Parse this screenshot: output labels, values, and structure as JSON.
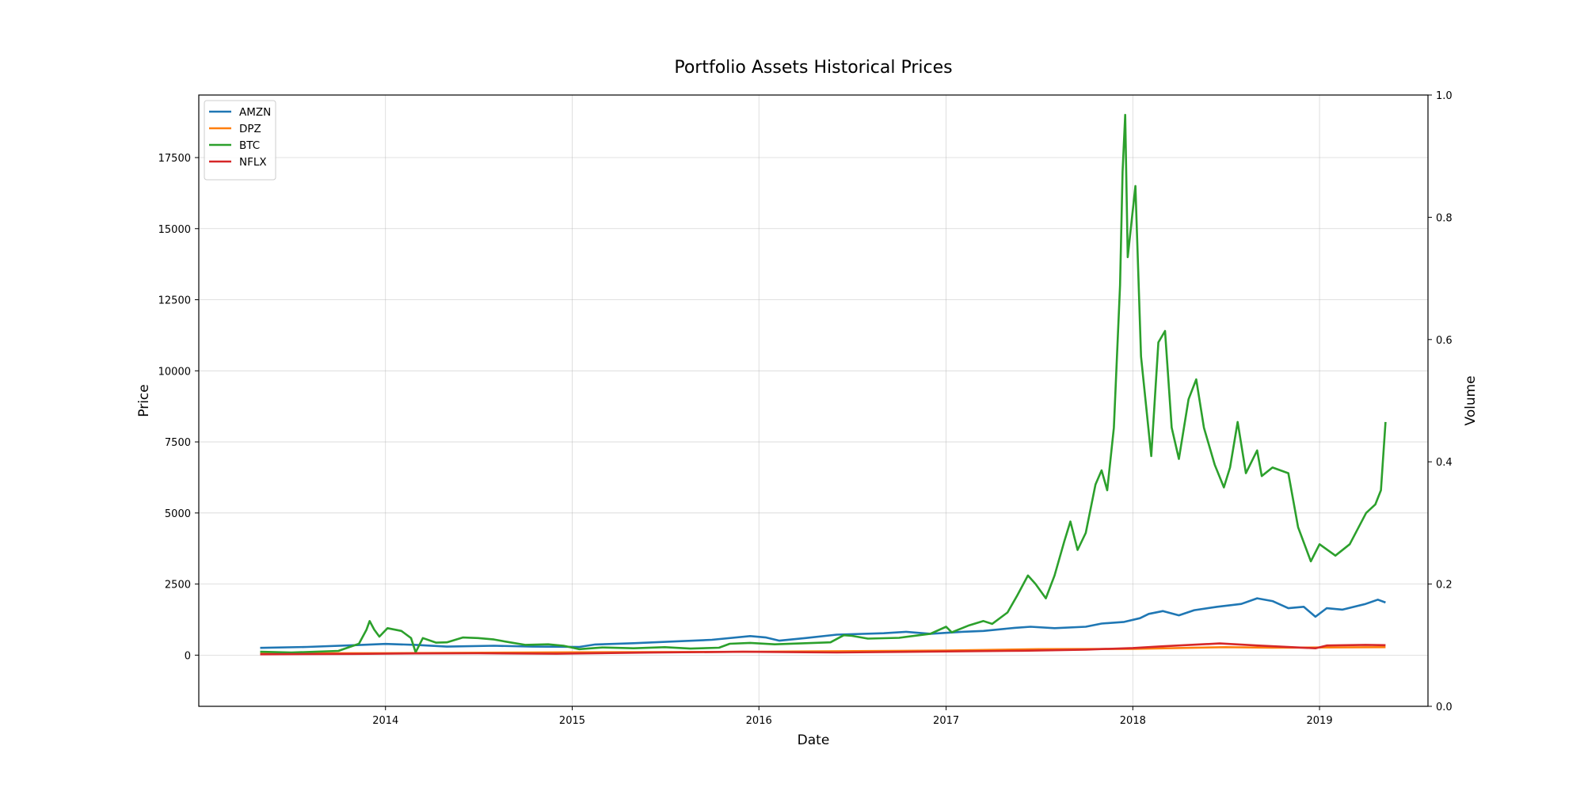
{
  "chart_data": {
    "type": "line",
    "title": "Portfolio Assets Historical Prices",
    "xlabel": "Date",
    "ylabel": "Price",
    "y2label": "Volume",
    "xlim": [
      "2013-01-01",
      "2019-08-01"
    ],
    "ylim": [
      -1800,
      19700
    ],
    "y2lim": [
      0,
      1.0
    ],
    "x_ticks": [
      "2014",
      "2015",
      "2016",
      "2017",
      "2018",
      "2019"
    ],
    "y_ticks": [
      0,
      2500,
      5000,
      7500,
      10000,
      12500,
      15000,
      17500
    ],
    "y2_ticks": [
      "0.0",
      "0.2",
      "0.4",
      "0.6",
      "0.8",
      "1.0"
    ],
    "grid": true,
    "legend_position": "top-left",
    "series": [
      {
        "name": "AMZN",
        "color": "#1f77b4",
        "points": [
          [
            "2013-05-01",
            255
          ],
          [
            "2013-08-01",
            290
          ],
          [
            "2013-11-01",
            350
          ],
          [
            "2014-01-01",
            395
          ],
          [
            "2014-03-01",
            360
          ],
          [
            "2014-05-01",
            300
          ],
          [
            "2014-08-01",
            330
          ],
          [
            "2014-10-15",
            300
          ],
          [
            "2015-01-15",
            290
          ],
          [
            "2015-02-15",
            375
          ],
          [
            "2015-05-01",
            420
          ],
          [
            "2015-07-20",
            480
          ],
          [
            "2015-10-01",
            540
          ],
          [
            "2015-12-15",
            670
          ],
          [
            "2016-01-15",
            620
          ],
          [
            "2016-02-10",
            510
          ],
          [
            "2016-04-01",
            600
          ],
          [
            "2016-06-01",
            720
          ],
          [
            "2016-09-01",
            770
          ],
          [
            "2016-10-15",
            820
          ],
          [
            "2016-12-01",
            750
          ],
          [
            "2017-02-01",
            820
          ],
          [
            "2017-03-15",
            850
          ],
          [
            "2017-05-15",
            960
          ],
          [
            "2017-06-15",
            1000
          ],
          [
            "2017-08-01",
            950
          ],
          [
            "2017-10-01",
            1000
          ],
          [
            "2017-11-01",
            1110
          ],
          [
            "2017-12-15",
            1170
          ],
          [
            "2018-01-15",
            1300
          ],
          [
            "2018-02-01",
            1450
          ],
          [
            "2018-03-01",
            1550
          ],
          [
            "2018-04-01",
            1400
          ],
          [
            "2018-05-01",
            1580
          ],
          [
            "2018-06-15",
            1700
          ],
          [
            "2018-08-01",
            1800
          ],
          [
            "2018-09-01",
            2000
          ],
          [
            "2018-10-01",
            1900
          ],
          [
            "2018-11-01",
            1650
          ],
          [
            "2018-12-01",
            1700
          ],
          [
            "2018-12-24",
            1350
          ],
          [
            "2019-01-15",
            1650
          ],
          [
            "2019-02-15",
            1600
          ],
          [
            "2019-04-01",
            1800
          ],
          [
            "2019-04-25",
            1950
          ],
          [
            "2019-05-10",
            1850
          ]
        ]
      },
      {
        "name": "DPZ",
        "color": "#ff7f0e",
        "points": [
          [
            "2013-05-01",
            60
          ],
          [
            "2014-01-01",
            70
          ],
          [
            "2015-01-01",
            100
          ],
          [
            "2016-01-01",
            120
          ],
          [
            "2017-01-01",
            160
          ],
          [
            "2017-07-01",
            210
          ],
          [
            "2018-01-01",
            220
          ],
          [
            "2018-07-01",
            280
          ],
          [
            "2018-10-01",
            260
          ],
          [
            "2019-01-01",
            270
          ],
          [
            "2019-05-10",
            280
          ]
        ]
      },
      {
        "name": "BTC",
        "color": "#2ca02c",
        "points": [
          [
            "2013-05-01",
            120
          ],
          [
            "2013-07-01",
            90
          ],
          [
            "2013-10-01",
            150
          ],
          [
            "2013-11-10",
            400
          ],
          [
            "2013-11-25",
            900
          ],
          [
            "2013-12-01",
            1200
          ],
          [
            "2013-12-10",
            900
          ],
          [
            "2013-12-20",
            650
          ],
          [
            "2014-01-05",
            950
          ],
          [
            "2014-02-01",
            850
          ],
          [
            "2014-02-20",
            600
          ],
          [
            "2014-03-01",
            100
          ],
          [
            "2014-03-15",
            600
          ],
          [
            "2014-04-10",
            440
          ],
          [
            "2014-05-01",
            450
          ],
          [
            "2014-06-01",
            620
          ],
          [
            "2014-07-01",
            600
          ],
          [
            "2014-08-01",
            550
          ],
          [
            "2014-09-01",
            450
          ],
          [
            "2014-10-01",
            360
          ],
          [
            "2014-11-15",
            380
          ],
          [
            "2014-12-15",
            330
          ],
          [
            "2015-01-15",
            210
          ],
          [
            "2015-03-01",
            270
          ],
          [
            "2015-05-01",
            240
          ],
          [
            "2015-07-01",
            280
          ],
          [
            "2015-08-20",
            230
          ],
          [
            "2015-10-15",
            260
          ],
          [
            "2015-11-05",
            400
          ],
          [
            "2015-12-15",
            430
          ],
          [
            "2016-02-01",
            380
          ],
          [
            "2016-04-01",
            420
          ],
          [
            "2016-05-20",
            450
          ],
          [
            "2016-06-15",
            700
          ],
          [
            "2016-07-01",
            680
          ],
          [
            "2016-08-01",
            580
          ],
          [
            "2016-10-01",
            610
          ],
          [
            "2016-12-01",
            750
          ],
          [
            "2017-01-01",
            1000
          ],
          [
            "2017-01-12",
            800
          ],
          [
            "2017-02-15",
            1050
          ],
          [
            "2017-03-15",
            1200
          ],
          [
            "2017-04-01",
            1100
          ],
          [
            "2017-05-01",
            1500
          ],
          [
            "2017-05-20",
            2100
          ],
          [
            "2017-06-10",
            2800
          ],
          [
            "2017-06-25",
            2500
          ],
          [
            "2017-07-15",
            2000
          ],
          [
            "2017-08-01",
            2800
          ],
          [
            "2017-08-20",
            4000
          ],
          [
            "2017-09-01",
            4700
          ],
          [
            "2017-09-15",
            3700
          ],
          [
            "2017-10-01",
            4300
          ],
          [
            "2017-10-20",
            6000
          ],
          [
            "2017-11-01",
            6500
          ],
          [
            "2017-11-12",
            5800
          ],
          [
            "2017-11-25",
            8000
          ],
          [
            "2017-12-07",
            13000
          ],
          [
            "2017-12-12",
            17000
          ],
          [
            "2017-12-17",
            19000
          ],
          [
            "2017-12-22",
            14000
          ],
          [
            "2018-01-06",
            16500
          ],
          [
            "2018-01-17",
            10500
          ],
          [
            "2018-02-06",
            7000
          ],
          [
            "2018-02-20",
            11000
          ],
          [
            "2018-03-05",
            11400
          ],
          [
            "2018-03-18",
            8000
          ],
          [
            "2018-04-01",
            6900
          ],
          [
            "2018-04-20",
            9000
          ],
          [
            "2018-05-05",
            9700
          ],
          [
            "2018-05-20",
            8000
          ],
          [
            "2018-06-10",
            6700
          ],
          [
            "2018-06-28",
            5900
          ],
          [
            "2018-07-10",
            6600
          ],
          [
            "2018-07-25",
            8200
          ],
          [
            "2018-08-10",
            6400
          ],
          [
            "2018-09-01",
            7200
          ],
          [
            "2018-09-10",
            6300
          ],
          [
            "2018-10-01",
            6600
          ],
          [
            "2018-11-01",
            6400
          ],
          [
            "2018-11-20",
            4500
          ],
          [
            "2018-12-15",
            3300
          ],
          [
            "2019-01-01",
            3900
          ],
          [
            "2019-02-01",
            3500
          ],
          [
            "2019-03-01",
            3900
          ],
          [
            "2019-04-02",
            5000
          ],
          [
            "2019-04-20",
            5300
          ],
          [
            "2019-05-01",
            5800
          ],
          [
            "2019-05-10",
            8200
          ]
        ]
      },
      {
        "name": "NFLX",
        "color": "#d62728",
        "points": [
          [
            "2013-05-01",
            30
          ],
          [
            "2013-11-01",
            45
          ],
          [
            "2014-03-01",
            60
          ],
          [
            "2014-07-01",
            65
          ],
          [
            "2014-12-01",
            50
          ],
          [
            "2015-06-01",
            90
          ],
          [
            "2015-12-01",
            120
          ],
          [
            "2016-06-01",
            95
          ],
          [
            "2017-01-01",
            130
          ],
          [
            "2017-06-01",
            155
          ],
          [
            "2017-10-01",
            195
          ],
          [
            "2018-01-01",
            250
          ],
          [
            "2018-03-01",
            310
          ],
          [
            "2018-06-20",
            410
          ],
          [
            "2018-09-01",
            340
          ],
          [
            "2018-12-24",
            240
          ],
          [
            "2019-01-15",
            340
          ],
          [
            "2019-04-01",
            360
          ],
          [
            "2019-05-10",
            350
          ]
        ]
      }
    ]
  }
}
